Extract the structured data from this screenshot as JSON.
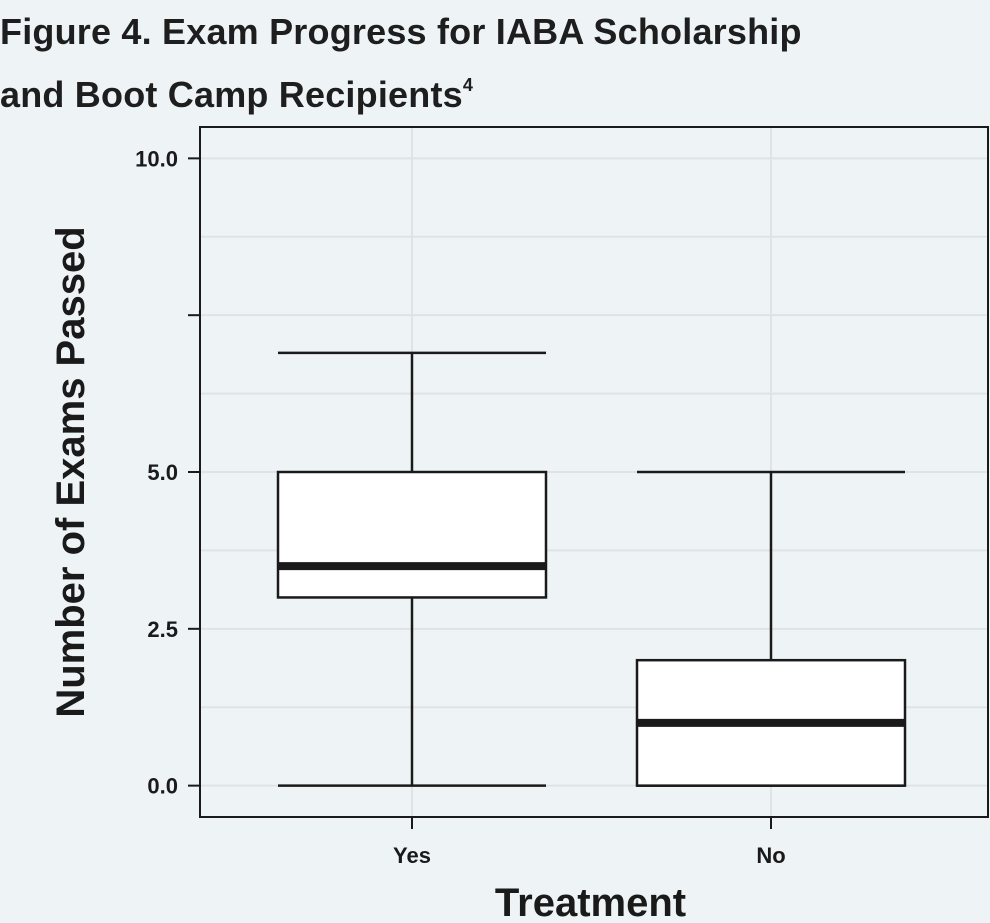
{
  "figure": {
    "title_line1": "Figure 4. Exam Progress for IABA Scholarship",
    "title_line2": "and Boot Camp Recipients",
    "title_superscript": "4"
  },
  "chart_data": {
    "type": "boxplot",
    "xlabel": "Treatment",
    "ylabel": "Number of Exams Passed",
    "ylim": [
      -0.5,
      10.5
    ],
    "yticks": [
      0.0,
      2.5,
      5.0,
      10.0
    ],
    "ytick_labels": [
      "0.0",
      "2.5",
      "5.0",
      "10.0"
    ],
    "minor_gridlines": [
      1.25,
      3.75,
      6.25,
      7.5,
      8.75
    ],
    "grid": true,
    "categories": [
      "Yes",
      "No"
    ],
    "boxes": [
      {
        "category": "Yes",
        "whisker_low": 0.0,
        "q1": 3.0,
        "median": 3.5,
        "q3": 5.0,
        "whisker_high": 6.9
      },
      {
        "category": "No",
        "whisker_low": 0.0,
        "q1": 0.0,
        "median": 1.0,
        "q3": 2.0,
        "whisker_high": 5.0
      }
    ],
    "colors": {
      "box_fill": "#ffffff",
      "stroke": "#1a1a1a",
      "panel_bg": "#eef4f6",
      "grid": "#dfe3e6"
    }
  }
}
